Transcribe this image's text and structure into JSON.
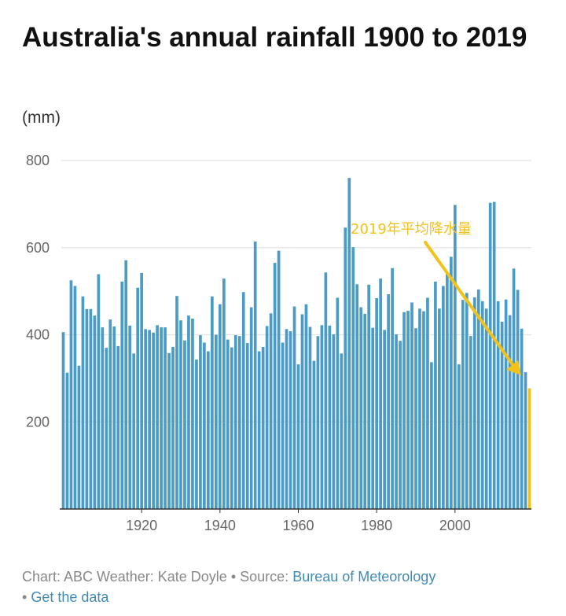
{
  "title": "Australia's annual rainfall 1900 to 2019",
  "unit_label": "(mm)",
  "annotation": "2019年平均降水量",
  "footer": {
    "credit": "Chart: ABC Weather: Kate Doyle",
    "separator": "•",
    "source_prefix": "Source:",
    "source_link": "Bureau of Meteorology",
    "data_link": "Get the data"
  },
  "colors": {
    "bars": "#4a9cc6",
    "highlight": "#f2c21b",
    "annotation": "#f2c21b",
    "grid": "#e3e3e3"
  },
  "chart_data": {
    "type": "bar",
    "x_start": 1900,
    "x_end": 2019,
    "ylim": [
      0,
      800
    ],
    "yticks": [
      200,
      400,
      600,
      800
    ],
    "xticks": [
      1920,
      1940,
      1960,
      1980,
      2000
    ],
    "values": [
      406,
      313,
      525,
      512,
      329,
      488,
      459,
      459,
      444,
      539,
      417,
      370,
      435,
      419,
      374,
      522,
      571,
      421,
      357,
      508,
      542,
      413,
      411,
      405,
      422,
      417,
      417,
      358,
      372,
      489,
      433,
      387,
      444,
      437,
      343,
      399,
      382,
      362,
      488,
      400,
      470,
      529,
      389,
      371,
      399,
      397,
      498,
      381,
      463,
      614,
      362,
      372,
      420,
      449,
      565,
      593,
      382,
      413,
      408,
      465,
      332,
      447,
      470,
      418,
      340,
      397,
      422,
      543,
      421,
      401,
      485,
      357,
      646,
      760,
      601,
      516,
      463,
      448,
      515,
      416,
      484,
      529,
      411,
      493,
      553,
      401,
      386,
      452,
      455,
      474,
      415,
      460,
      454,
      485,
      337,
      522,
      460,
      512,
      541,
      579,
      698,
      332,
      480,
      496,
      397,
      486,
      504,
      477,
      460,
      703,
      705,
      477,
      430,
      481,
      445,
      552,
      503,
      414,
      314,
      277
    ],
    "highlight_year": 2019
  }
}
